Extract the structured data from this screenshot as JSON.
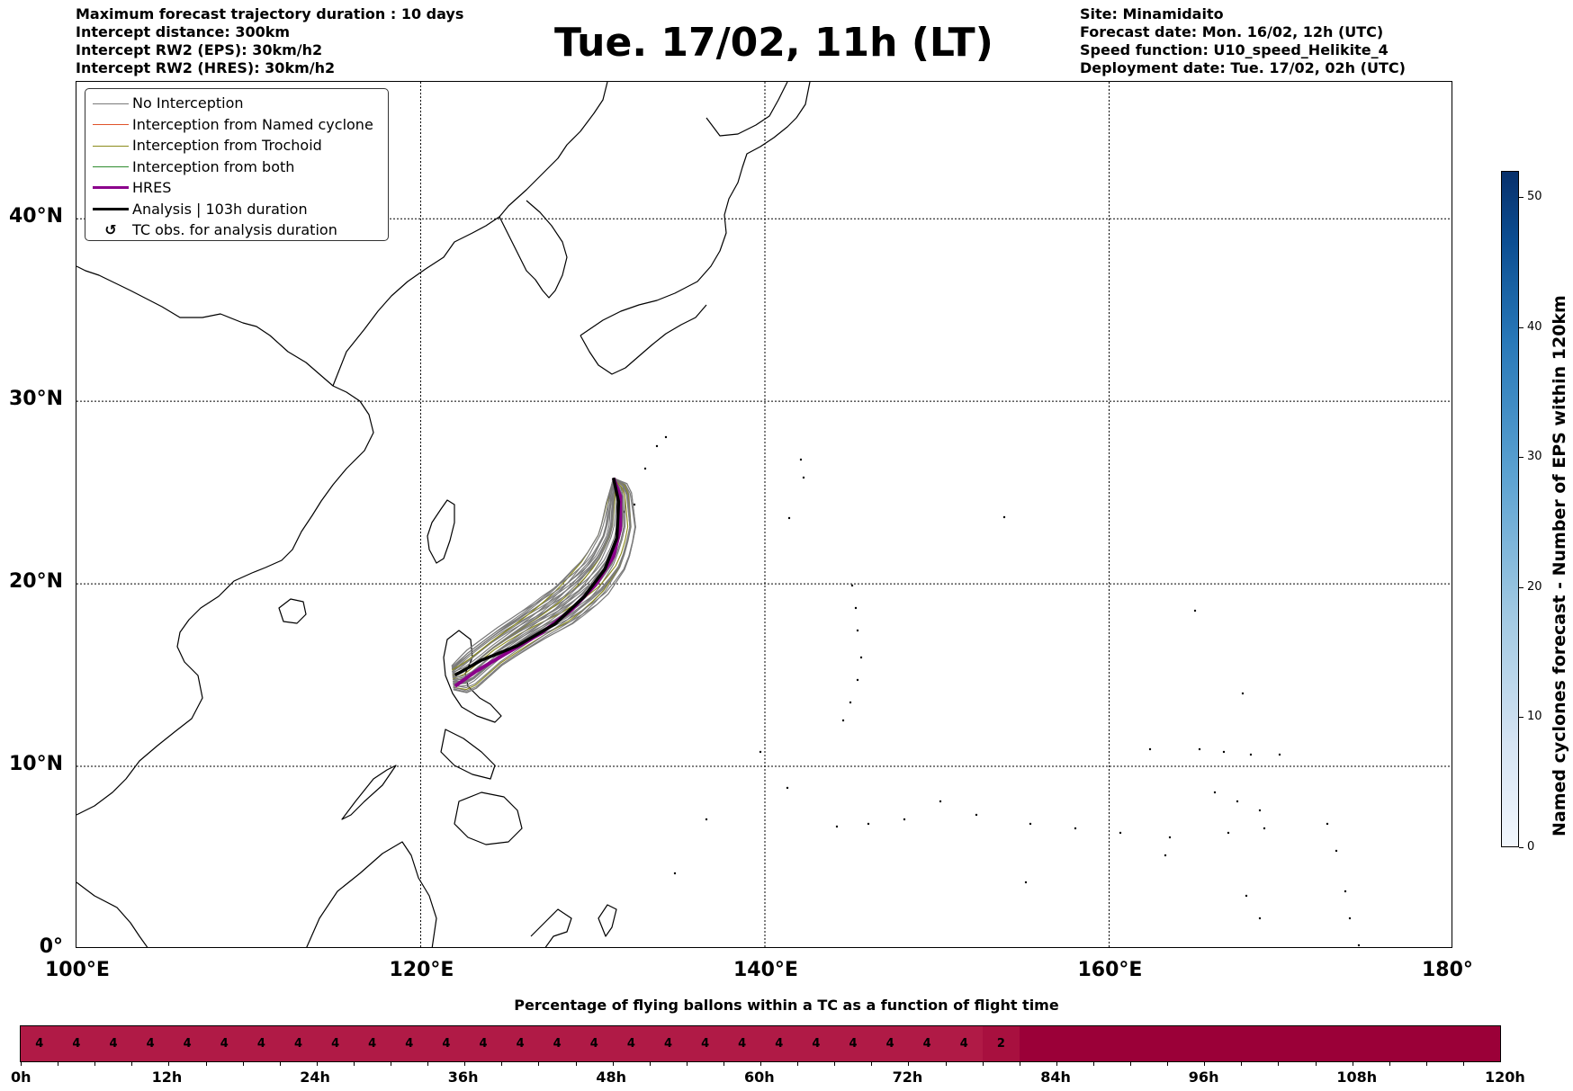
{
  "header": {
    "info_left": [
      "Maximum forecast trajectory duration : 10 days",
      "Intercept distance: 300km",
      "Intercept RW2 (EPS):  30km/h2",
      "Intercept RW2 (HRES): 30km/h2"
    ],
    "title": "Tue. 17/02, 11h (LT)",
    "info_right": [
      "Site: Minamidaito",
      "Forecast date: Mon. 16/02, 12h (UTC)",
      "Speed function: U10_speed_Helikite_4",
      "Deployment date: Tue. 17/02, 02h (UTC)"
    ]
  },
  "map": {
    "extent": {
      "lon": [
        100,
        180
      ],
      "lat": [
        0,
        47.5
      ]
    },
    "lat_labels": [
      "0°",
      "10°N",
      "20°N",
      "30°N",
      "40°N"
    ],
    "lat_values": [
      0,
      10,
      20,
      30,
      40
    ],
    "lon_labels": [
      "100°E",
      "120°E",
      "140°E",
      "160°E",
      "180°"
    ],
    "lon_values": [
      100,
      120,
      140,
      160,
      180
    ],
    "grid": true,
    "site": {
      "name": "Minamidaito",
      "lon": 131.2,
      "lat": 25.8
    }
  },
  "legend": {
    "items": [
      {
        "label": "No Interception",
        "color": "#7a7a7a",
        "width": 1
      },
      {
        "label": "Interception from Named cyclone",
        "color": "#e0522a",
        "width": 1
      },
      {
        "label": "Interception from Trochoid",
        "color": "#8a8a1a",
        "width": 1
      },
      {
        "label": "Interception from both",
        "color": "#2e8b2e",
        "width": 1
      },
      {
        "label": "HRES",
        "color": "#8b008b",
        "width": 3.5
      },
      {
        "label": "Analysis | 103h duration",
        "color": "#000000",
        "width": 3.5
      },
      {
        "label": "TC obs. for analysis duration",
        "icon": "cyclone-icon"
      }
    ]
  },
  "chart_data": {
    "type": "map-trajectories",
    "hres": [
      [
        131.2,
        25.8
      ],
      [
        131.6,
        24.8
      ],
      [
        131.6,
        23.0
      ],
      [
        131.2,
        21.5
      ],
      [
        130.2,
        20.0
      ],
      [
        128.8,
        18.6
      ],
      [
        127.0,
        17.3
      ],
      [
        125.0,
        16.2
      ],
      [
        123.2,
        15.2
      ],
      [
        122.0,
        14.4
      ]
    ],
    "analysis": [
      [
        131.2,
        25.8
      ],
      [
        131.5,
        24.5
      ],
      [
        131.4,
        22.5
      ],
      [
        130.7,
        20.8
      ],
      [
        129.5,
        19.3
      ],
      [
        127.8,
        17.8
      ],
      [
        125.6,
        16.6
      ],
      [
        123.5,
        15.8
      ],
      [
        122.0,
        15.0
      ]
    ],
    "eps_lower_bound": [
      [
        131.2,
        25.8
      ],
      [
        132.2,
        25.4
      ],
      [
        132.5,
        23.0
      ],
      [
        132.0,
        21.0
      ],
      [
        130.8,
        19.3
      ],
      [
        129.0,
        17.9
      ],
      [
        127.0,
        16.9
      ],
      [
        124.8,
        15.6
      ],
      [
        122.9,
        14.0
      ],
      [
        121.9,
        14.2
      ]
    ],
    "eps_upper_bound": [
      [
        131.2,
        25.8
      ],
      [
        130.8,
        24.5
      ],
      [
        130.4,
        22.8
      ],
      [
        129.5,
        21.4
      ],
      [
        128.0,
        20.0
      ],
      [
        126.2,
        18.7
      ],
      [
        124.3,
        17.5
      ],
      [
        122.6,
        16.3
      ],
      [
        121.8,
        15.5
      ]
    ]
  },
  "colorbar": {
    "label": "Named cyclones forecast - Number of EPS within 120km",
    "ticks": [
      "0",
      "10",
      "20",
      "30",
      "40",
      "50"
    ],
    "tick_values": [
      0,
      10,
      20,
      30,
      40,
      50
    ],
    "max": 52
  },
  "timeline": {
    "title": "Percentage of flying ballons within a TC as a function of flight time",
    "tick_labels": [
      "0h",
      "12h",
      "24h",
      "36h",
      "48h",
      "60h",
      "72h",
      "84h",
      "96h",
      "108h",
      "120h"
    ],
    "max_hours": 120,
    "step_hours": 3,
    "cells": [
      4,
      4,
      4,
      4,
      4,
      4,
      4,
      4,
      4,
      4,
      4,
      4,
      4,
      4,
      4,
      4,
      4,
      4,
      4,
      4,
      4,
      4,
      4,
      4,
      4,
      4,
      2
    ],
    "cell_colors": {
      "4": "#b01a46",
      "2": "#a8103f",
      "empty": "#9b0038"
    }
  }
}
